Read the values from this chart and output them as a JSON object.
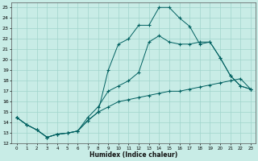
{
  "xlabel": "Humidex (Indice chaleur)",
  "ylabel": "",
  "xlim": [
    -0.5,
    23.5
  ],
  "ylim": [
    12,
    25.5
  ],
  "yticks": [
    12,
    13,
    14,
    15,
    16,
    17,
    18,
    19,
    20,
    21,
    22,
    23,
    24,
    25
  ],
  "xticks": [
    0,
    1,
    2,
    3,
    4,
    5,
    6,
    7,
    8,
    9,
    10,
    11,
    12,
    13,
    14,
    15,
    16,
    17,
    18,
    19,
    20,
    21,
    22,
    23
  ],
  "bg_color": "#c8ece6",
  "grid_color": "#a0d4cc",
  "line_color": "#006060",
  "line1_x": [
    0,
    1,
    2,
    3,
    4,
    5,
    6,
    7,
    8,
    9,
    10,
    11,
    12,
    13,
    14,
    15,
    16,
    17,
    18,
    19,
    20,
    21,
    22,
    23
  ],
  "line1_y": [
    14.5,
    13.8,
    13.3,
    12.6,
    12.9,
    13.0,
    13.2,
    14.2,
    15.0,
    15.5,
    16.0,
    16.2,
    16.4,
    16.6,
    16.8,
    17.0,
    17.0,
    17.2,
    17.4,
    17.6,
    17.8,
    18.0,
    18.2,
    17.2
  ],
  "line2_x": [
    0,
    1,
    2,
    3,
    4,
    5,
    6,
    7,
    8,
    9,
    10,
    11,
    12,
    13,
    14,
    15,
    16,
    17,
    18,
    19,
    20,
    21,
    22,
    23
  ],
  "line2_y": [
    14.5,
    13.8,
    13.3,
    12.6,
    12.9,
    13.0,
    13.2,
    14.2,
    15.0,
    19.0,
    21.5,
    22.0,
    23.3,
    23.3,
    25.0,
    25.0,
    24.0,
    23.2,
    21.5,
    21.7,
    20.2,
    18.5,
    17.5,
    17.2
  ],
  "line3_x": [
    0,
    1,
    2,
    3,
    4,
    5,
    6,
    7,
    8,
    9,
    10,
    11,
    12,
    13,
    14,
    15,
    16,
    17,
    18,
    19,
    20,
    21,
    22,
    23
  ],
  "line3_y": [
    14.5,
    13.8,
    13.3,
    12.6,
    12.9,
    13.0,
    13.2,
    14.5,
    15.5,
    17.0,
    17.5,
    18.0,
    18.8,
    21.7,
    22.3,
    21.7,
    21.5,
    21.5,
    21.7,
    21.7,
    20.2,
    18.5,
    17.5,
    17.2
  ]
}
